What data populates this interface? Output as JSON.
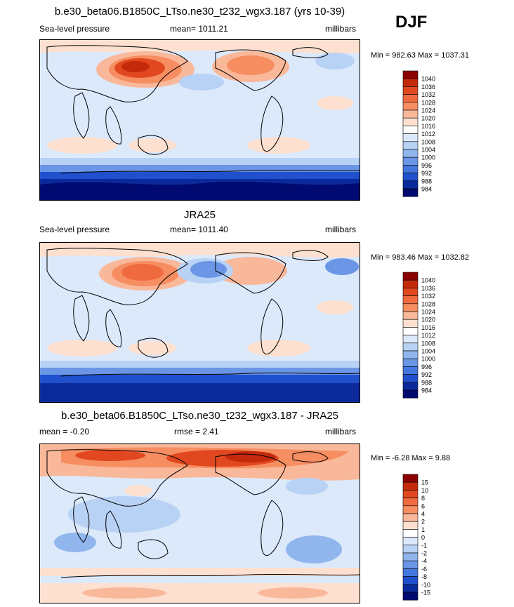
{
  "season": "DJF",
  "chart_data": [
    {
      "type": "heatmap",
      "title": "b.e30_beta06.B1850C_LTso.ne30_t232_wgx3.187 (yrs 10-39)",
      "left_label": "Sea-level pressure",
      "center_label": "mean= 1011.21",
      "right_label": "millibars",
      "min_max": "Min = 982.63 Max = 1037.31",
      "colorbar_levels": [
        "1040",
        "1036",
        "1032",
        "1028",
        "1024",
        "1020",
        "1016",
        "1012",
        "1008",
        "1004",
        "1000",
        "996",
        "992",
        "988",
        "984"
      ],
      "colorbar_colors": [
        "#8b0000",
        "#c52a0b",
        "#e2481f",
        "#f06a3f",
        "#f68e62",
        "#f9b89a",
        "#fde0cf",
        "#ffffff",
        "#dce9fb",
        "#b8d2f5",
        "#91b6ee",
        "#6b96e6",
        "#4477de",
        "#2050cc",
        "#0a2a9c",
        "#000a70"
      ]
    },
    {
      "type": "heatmap",
      "title": "JRA25",
      "left_label": "Sea-level pressure",
      "center_label": "mean= 1011.40",
      "right_label": "millibars",
      "min_max": "Min = 983.46 Max = 1032.82",
      "colorbar_levels": [
        "1040",
        "1036",
        "1032",
        "1028",
        "1024",
        "1020",
        "1016",
        "1012",
        "1008",
        "1004",
        "1000",
        "996",
        "992",
        "988",
        "984"
      ],
      "colorbar_colors": [
        "#8b0000",
        "#c52a0b",
        "#e2481f",
        "#f06a3f",
        "#f68e62",
        "#f9b89a",
        "#fde0cf",
        "#ffffff",
        "#dce9fb",
        "#b8d2f5",
        "#91b6ee",
        "#6b96e6",
        "#4477de",
        "#2050cc",
        "#0a2a9c",
        "#000a70"
      ]
    },
    {
      "type": "heatmap",
      "title": "b.e30_beta06.B1850C_LTso.ne30_t232_wgx3.187 - JRA25",
      "left_label": "mean = -0.20",
      "center_label": "rmse =  2.41",
      "right_label": "millibars",
      "min_max": "Min =  -6.28 Max =   9.88",
      "colorbar_levels": [
        "15",
        "10",
        "8",
        "6",
        "4",
        "2",
        "1",
        "0",
        "-1",
        "-2",
        "-4",
        "-6",
        "-8",
        "-10",
        "-15"
      ],
      "colorbar_colors": [
        "#8b0000",
        "#c52a0b",
        "#e2481f",
        "#f06a3f",
        "#f68e62",
        "#f9b89a",
        "#fde0cf",
        "#ffffff",
        "#dce9fb",
        "#b8d2f5",
        "#91b6ee",
        "#6b96e6",
        "#4477de",
        "#2050cc",
        "#0a2a9c",
        "#000a70"
      ]
    }
  ]
}
